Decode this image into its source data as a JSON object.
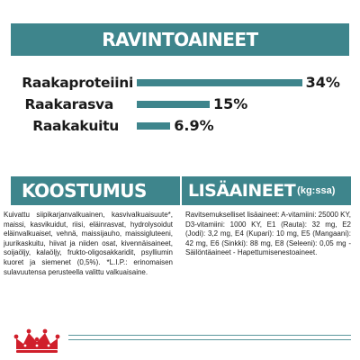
{
  "colors": {
    "accent": "#3e858c",
    "logo_red": "#d01f2b"
  },
  "nutrients": {
    "header": "RAVINTOAINEET",
    "items": [
      {
        "label": "Raakaproteiini",
        "value": "34%",
        "percent": 34
      },
      {
        "label": "Raakarasva",
        "value": "15%",
        "percent": 15
      },
      {
        "label": "Raakakuitu",
        "value": "6.9%",
        "percent": 6.9
      }
    ]
  },
  "composition": {
    "header": "KOOSTUMUS",
    "text": "Kuivattu siipikarjanvalkuainen, kasvivalkuaisuute*, maissi, kasvikuidut, riisi, eläinrasvat, hydrolysoidut eläinvalkuaiset, vehnä, maissijauho, maissigluteeni, juurikaskuitu, hiivat ja niiden osat, kivennäisaineet, soijaöljy, kalaöljy, frukto-oligosakkaridit, psylliumin kuoret ja siemenet (0,5%). *L.I.P.: erinomaisen sulavuutensa perusteella valittu valkuaisaine."
  },
  "additives": {
    "header": "LISÄAINEET",
    "unit": "(kg:ssa)",
    "text": "Ravitsemukselliset lisäaineet: A-vitamiini: 25000 KY, D3-vitamiini: 1000 KY, E1 (Rauta): 32 mg, E2 (Jodi): 3,2 mg, E4 (Kupari): 10 mg, E5 (Mangaani): 42 mg, E6 (Sinkki): 88 mg, E8 (Seleeni): 0,05 mg - Säilöntäaineet - Hapettumisenestoaineet."
  },
  "logo": {
    "icon": "royal-canin-crown-icon"
  }
}
